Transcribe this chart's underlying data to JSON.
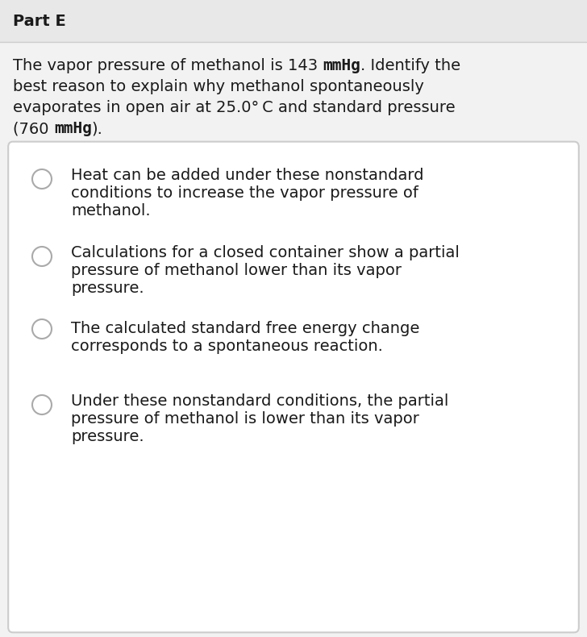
{
  "part_label": "Part E",
  "options": [
    "Heat can be added under these nonstandard\nconditions to increase the vapor pressure of\nmethanol.",
    "Calculations for a closed container show a partial\npressure of methanol lower than its vapor\npressure.",
    "The calculated standard free energy change\ncorresponds to a spontaneous reaction.",
    "Under these nonstandard conditions, the partial\npressure of methanol is lower than its vapor\npressure."
  ],
  "bg_color": "#f2f2f2",
  "header_bg": "#e8e8e8",
  "box_bg": "#ffffff",
  "text_color": "#1a1a1a",
  "part_font_size": 14,
  "question_font_size": 14,
  "option_font_size": 14,
  "radio_color": "#aaaaaa",
  "border_color": "#cccccc"
}
